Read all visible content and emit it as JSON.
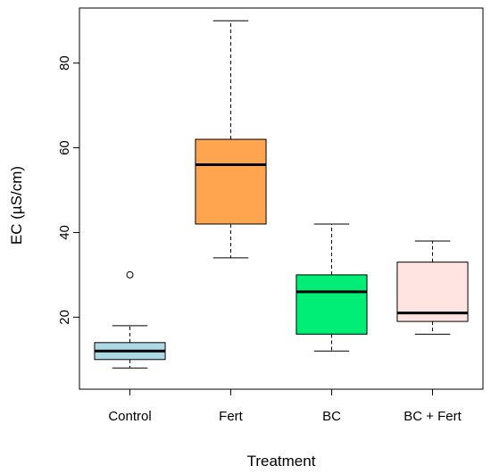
{
  "chart_data": {
    "type": "boxplot",
    "title": "",
    "xlabel": "Treatment",
    "ylabel": "EC (µS/cm)",
    "ylim": [
      3,
      93
    ],
    "yticks": [
      20,
      40,
      60,
      80
    ],
    "categories": [
      "Control",
      "Fert",
      "BC",
      "BC + Fert"
    ],
    "series": [
      {
        "category": "Control",
        "min": 8,
        "q1": 10,
        "median": 12,
        "q3": 14,
        "max": 18,
        "outliers": [
          30
        ],
        "color": "#ADD8E6"
      },
      {
        "category": "Fert",
        "min": 34,
        "q1": 42,
        "median": 56,
        "q3": 62,
        "max": 90,
        "outliers": [],
        "color": "#FFA54F"
      },
      {
        "category": "BC",
        "min": 12,
        "q1": 16,
        "median": 26,
        "q3": 30,
        "max": 42,
        "outliers": [],
        "color": "#00EE76"
      },
      {
        "category": "BC + Fert",
        "min": 16,
        "q1": 19,
        "median": 21,
        "q3": 33,
        "max": 38,
        "outliers": [],
        "color": "#FFE4E1"
      }
    ],
    "grid": false,
    "legend": "none"
  }
}
